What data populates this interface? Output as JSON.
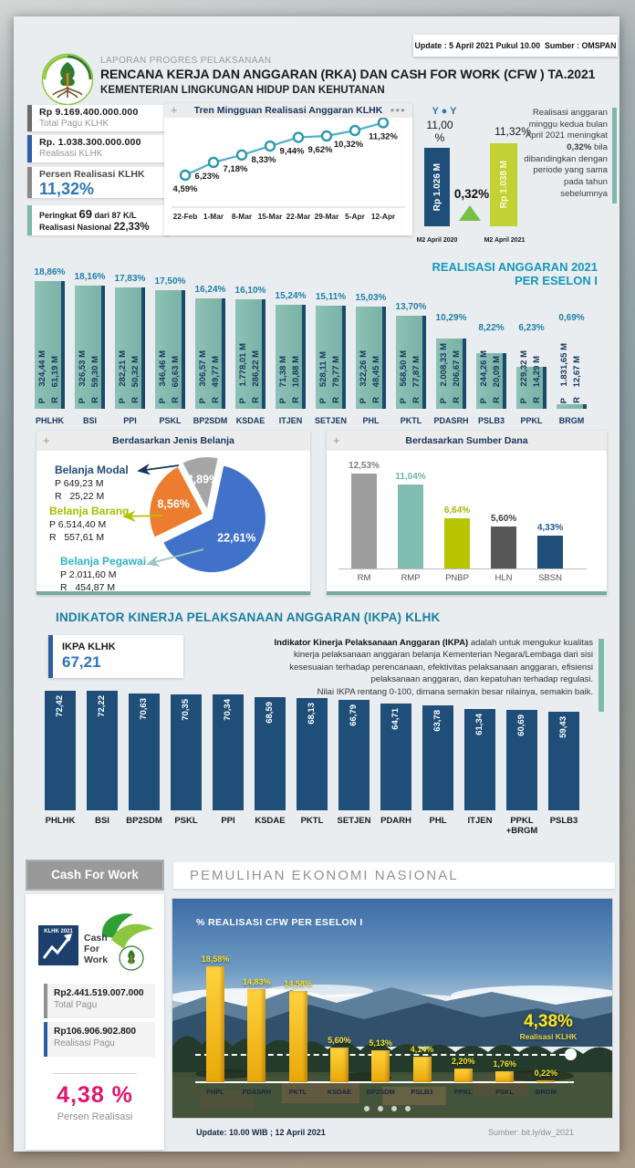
{
  "header": {
    "kicker": "LAPORAN  PROGRES PELAKSANAAN",
    "title": "RENCANA KERJA DAN ANGGARAN (RKA) DAN CASH FOR WORK (CFW ) TA.2021",
    "subtitle": "KEMENTERIAN LINGKUNGAN HIDUP DAN KEHUTANAN",
    "update_note": "Update : 5 April 2021 Pukul 10.00",
    "source_note": "Sumber : OMSPAN"
  },
  "summary": {
    "total_pagu_value": "Rp  9.169.400.000.000",
    "total_pagu_label": "Total Pagu KLHK",
    "realisasi_value": "Rp.  1.038.300.000.000",
    "realisasi_label": "Realisasi KLHK",
    "persen_label": "Persen Realisasi KLHK",
    "persen_value": "11,32%",
    "peringkat_prefix": "Peringkat",
    "peringkat_rank": "69",
    "peringkat_suffix": "dari 87 K/L",
    "nasional_label": "Realisasi  Nasional",
    "nasional_value": "22,33%"
  },
  "yoy": {
    "header": "Y ● Y",
    "note_pre": "Realisasi anggaran minggu kedua bulan April 2021 meningkat ",
    "note_bold": "0,32%",
    "note_post": " bila dibandingkan dengan periode yang sama pada tahun sebelumnya"
  },
  "eselon_title_line1": "REALISASI ANGGARAN 2021",
  "eselon_title_line2": "PER ESELON I",
  "ikpa": {
    "heading": "INDIKATOR KINERJA PELAKSANAAN ANGGARAN (IKPA) KLHK",
    "score_label": "IKPA KLHK",
    "score_value": "67,21",
    "desc_lead": "Indikator Kinerja Pelaksanaan Anggaran (IKPA)",
    "desc_body": " adalah untuk mengukur kualitas kinerja pelaksanaan anggaran belanja Kementerian Negara/Lembaga dari sisi kesesuaian terhadap perencanaan, efektivitas pelaksanaan anggaran, efisiensi pelaksanaan anggaran, dan kepatuhan terhadap regulasi.",
    "desc_note": "Nilai IKPA rentang 0-100, dimana semakin besar nilainya, semakin baik."
  },
  "cfw": {
    "box_title": "Cash For Work",
    "logo_badge": "KLHK 2021",
    "logo_line1": "Cash",
    "logo_line2": "For",
    "logo_line3": "Work",
    "total_pagu_value": "Rp2.441.519.007.000",
    "total_pagu_label": "Total Pagu",
    "realisasi_value": "Rp106.906.902.800",
    "realisasi_label": "Realisasi Pagu",
    "persen_value": "4,38 %",
    "persen_label": "Persen Realisasi",
    "pen_header": "PEMULIHAN EKONOMI NASIONAL"
  },
  "footer": {
    "update": "Update: 10.00 WIB ;  12 April 2021",
    "source": "Sumber: bit.ly/dw_2021"
  },
  "chart_data": [
    {
      "name": "trend",
      "type": "line",
      "title": "Tren Mingguan Realisasi Anggaran KLHK",
      "x": [
        "22-Feb",
        "1-Mar",
        "8-Mar",
        "15-Mar",
        "22-Mar",
        "29-Mar",
        "5-Apr",
        "12-Apr"
      ],
      "values": [
        4.59,
        6.23,
        7.18,
        8.33,
        9.44,
        9.62,
        10.32,
        11.32
      ],
      "labels": [
        "4,59%",
        "6,23%",
        "7,18%",
        "8,33%",
        "9,44%",
        "9,62%",
        "10,32%",
        "11,32%"
      ],
      "ylim": [
        4,
        12
      ],
      "line_color": "#4fb0c4"
    },
    {
      "name": "yoy",
      "type": "bar",
      "categories": [
        "M2 April 2020",
        "M2 April 2021"
      ],
      "values": [
        11.0,
        11.32
      ],
      "value_labels": [
        "11,00 %",
        "11,32%"
      ],
      "bar_texts": [
        "Rp 1.026 M",
        "Rp 1.038 M"
      ],
      "colors": [
        "#1f4e79",
        "#c3d233"
      ],
      "delta_label": "0,32%"
    },
    {
      "name": "eselon",
      "type": "bar",
      "title": "REALISASI ANGGARAN 2021 PER ESELON I",
      "categories": [
        "PHLHK",
        "BSI",
        "PPI",
        "PSKL",
        "BP2SDM",
        "KSDAE",
        "ITJEN",
        "SETJEN",
        "PHL",
        "PKTL",
        "PDASRH",
        "PSLB3",
        "PPKL",
        "BRGM"
      ],
      "values": [
        18.86,
        18.16,
        17.83,
        17.5,
        16.24,
        16.1,
        15.24,
        15.11,
        15.03,
        13.7,
        10.29,
        8.22,
        6.23,
        0.69
      ],
      "labels": [
        "18,86%",
        "18,16%",
        "17,83%",
        "17,50%",
        "16,24%",
        "16,10%",
        "15,24%",
        "15,11%",
        "15,03%",
        "13,70%",
        "10,29%",
        "8,22%",
        "6,23%",
        "0,69%"
      ],
      "pagu": [
        "324,44 M",
        "326,53 M",
        "282,21 M",
        "346,46 M",
        "306,57 M",
        "1.778,01 M",
        "71,38 M",
        "528,11 M",
        "322,26 M",
        "568,50 M",
        "2.008,33 M",
        "244,26 M",
        "229,32 M",
        "1.831,65 M"
      ],
      "realisasi": [
        "61,19 M",
        "59,30 M",
        "50,32 M",
        "60,63 M",
        "49,77 M",
        "286,22 M",
        "10,88 M",
        "79,77 M",
        "48,45 M",
        "77,87 M",
        "206,67 M",
        "20,09 M",
        "14,29 M",
        "12,67 M"
      ],
      "bar_color": "#7fb9ad"
    },
    {
      "name": "jenis",
      "type": "pie",
      "title": "Berdasarkan Jenis Belanja",
      "slices": [
        {
          "label": "Belanja Pegawai",
          "pct": 22.61,
          "pct_label": "22,61%",
          "pagu": "P 2.011,60 M",
          "realisasi": "R   454,87 M",
          "color": "#3f72c8",
          "label_color": "#2fb4c8"
        },
        {
          "label": "Belanja Barang",
          "pct": 8.56,
          "pct_label": "8,56%",
          "pagu": "P 6.514,40 M",
          "realisasi": "R   557,61 M",
          "color": "#ec7d2e",
          "label_color": "#aabb00"
        },
        {
          "label": "Belanja Modal",
          "pct": 3.89,
          "pct_label": "3,89%",
          "pagu": "P 649,23 M",
          "realisasi": "R   25,22 M",
          "color": "#a6a6a6",
          "label_color": "#1f4e79"
        }
      ]
    },
    {
      "name": "sumber",
      "type": "bar",
      "title": "Berdasarkan Sumber Dana",
      "categories": [
        "RM",
        "RMP",
        "PNBP",
        "HLN",
        "SBSN"
      ],
      "values": [
        12.53,
        11.04,
        6.64,
        5.6,
        4.33
      ],
      "labels": [
        "12,53%",
        "11,04%",
        "6,64%",
        "5,60%",
        "4,33%"
      ],
      "colors": [
        "#9e9e9e",
        "#7fbcb2",
        "#b8c400",
        "#575757",
        "#1f4e79"
      ],
      "label_colors": [
        "#7f7f7f",
        "#6fb3a8",
        "#a8b800",
        "#3f3f3f",
        "#1f5c96"
      ]
    },
    {
      "name": "ikpa",
      "type": "bar",
      "categories": [
        "PHLHK",
        "BSI",
        "BP2SDM",
        "PSKL",
        "PPI",
        "KSDAE",
        "PKTL",
        "SETJEN",
        "PDARH",
        "PHL",
        "ITJEN",
        "PPKL +BRGM",
        "PSLB3"
      ],
      "values": [
        72.42,
        72.22,
        70.63,
        70.35,
        70.34,
        68.59,
        68.13,
        66.79,
        64.71,
        63.78,
        61.34,
        60.69,
        59.43
      ],
      "labels": [
        "72,42",
        "72,22",
        "70,63",
        "70,35",
        "70,34",
        "68,59",
        "68,13",
        "66,79",
        "64,71",
        "63,78",
        "61,34",
        "60,69",
        "59,43"
      ],
      "bar_color": "#1f4e79"
    },
    {
      "name": "cfw",
      "type": "bar",
      "title": "% REALISASI CFW PER ESELON I",
      "categories": [
        "PHPL",
        "PDASRH",
        "PKTL",
        "KSDAE",
        "BP2SDM",
        "PSLB3",
        "PPKL",
        "PSKL",
        "BRGM"
      ],
      "values": [
        18.58,
        14.83,
        14.58,
        5.6,
        5.13,
        4.14,
        2.2,
        1.76,
        0.22
      ],
      "labels": [
        "18,58%",
        "14,83%",
        "14,58%",
        "5,60%",
        "5,13%",
        "4,14%",
        "2,20%",
        "1,76%",
        "0,22%"
      ],
      "bar_color": "#f2b705",
      "reference_value": 4.38,
      "reference_label": "4,38%",
      "reference_sub": "Realisasi KLHK"
    }
  ]
}
